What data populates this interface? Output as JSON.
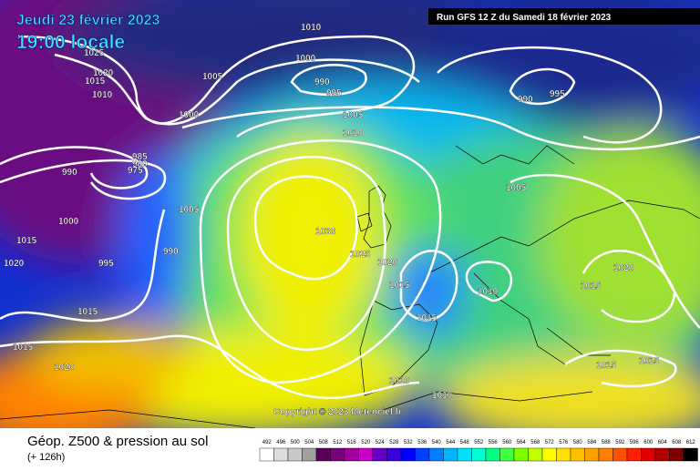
{
  "header": {
    "date": "Jeudi 23 février 2023",
    "time": "19:00 locale",
    "run": "Run GFS 12 Z du Samedi 18 février 2023"
  },
  "map": {
    "copyright": "Copyright © 2023 Meteociel.fr",
    "isobar_labels": [
      "1010",
      "1025",
      "1020",
      "1015",
      "1010",
      "1005",
      "1000",
      "990",
      "995",
      "1000",
      "1005",
      "1010",
      "990",
      "995",
      "985",
      "980",
      "975",
      "990",
      "1000",
      "1005",
      "1030",
      "1025",
      "1020",
      "1015",
      "1010",
      "1015",
      "1020",
      "1015",
      "1015",
      "1020",
      "995",
      "990",
      "1015",
      "1015",
      "1020",
      "1010",
      "1010",
      "1015",
      "1015",
      "1005"
    ]
  },
  "legend": {
    "title": "Géop. Z500 & pression au sol",
    "lead": "(+ 126h)",
    "scale": [
      492,
      496,
      500,
      504,
      508,
      512,
      516,
      520,
      524,
      528,
      532,
      536,
      540,
      544,
      548,
      552,
      556,
      560,
      564,
      568,
      572,
      576,
      580,
      584,
      588,
      592,
      596,
      600,
      604,
      608,
      612
    ]
  }
}
